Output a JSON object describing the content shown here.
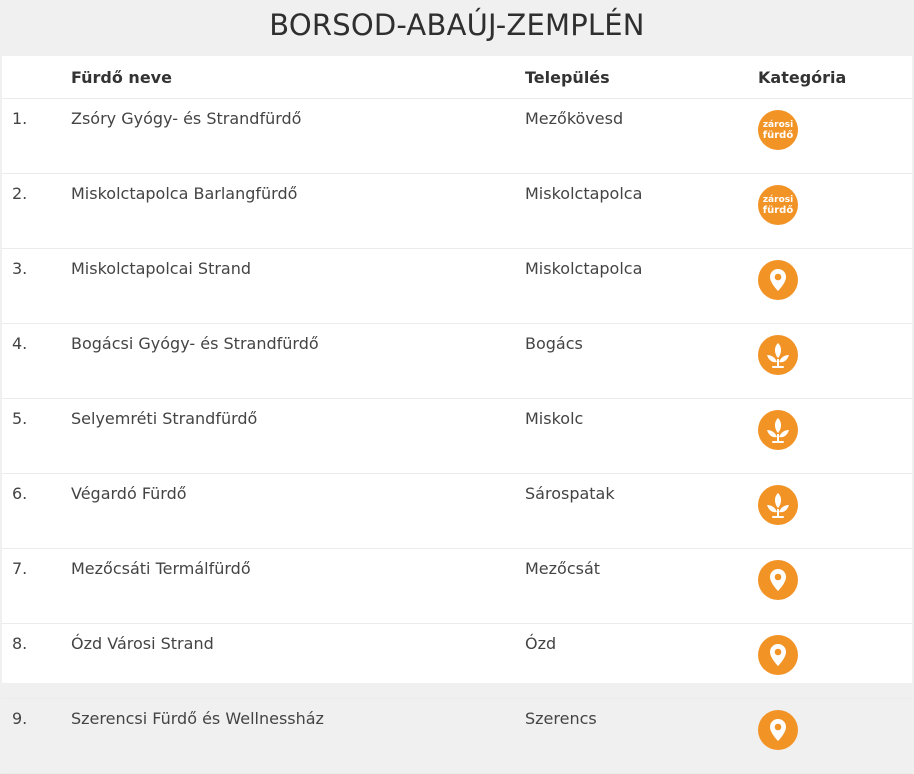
{
  "header": {
    "title": "BORSOD-ABAÚJ-ZEMPLÉN"
  },
  "table": {
    "columns": {
      "name": "Fürdő neve",
      "town": "Település",
      "category": "Kategória"
    },
    "rows": [
      {
        "num": "1.",
        "name": "Zsóry Gyógy- és Strandfürdő",
        "town": "Mezőkövesd",
        "category_icon": "varosi-furdo-icon"
      },
      {
        "num": "2.",
        "name": "Miskolctapolca Barlangfürdő",
        "town": "Miskolctapolca",
        "category_icon": "varosi-furdo-icon"
      },
      {
        "num": "3.",
        "name": "Miskolctapolcai Strand",
        "town": "Miskolctapolca",
        "category_icon": "location-pin-icon"
      },
      {
        "num": "4.",
        "name": "Bogácsi Gyógy- és Strandfürdő",
        "town": "Bogács",
        "category_icon": "plant-icon"
      },
      {
        "num": "5.",
        "name": "Selyemréti Strandfürdő",
        "town": "Miskolc",
        "category_icon": "plant-icon"
      },
      {
        "num": "6.",
        "name": "Végardó Fürdő",
        "town": "Sárospatak",
        "category_icon": "plant-icon"
      },
      {
        "num": "7.",
        "name": "Mezőcsáti Termálfürdő",
        "town": "Mezőcsát",
        "category_icon": "location-pin-icon"
      },
      {
        "num": "8.",
        "name": "Ózd Városi Strand",
        "town": "Ózd",
        "category_icon": "location-pin-icon"
      },
      {
        "num": "9.",
        "name": "Szerencsi Fürdő és Wellnessház",
        "town": "Szerencs",
        "category_icon": "location-pin-icon"
      }
    ]
  },
  "colors": {
    "accent": "#f29326",
    "background": "#f1f0f0"
  }
}
